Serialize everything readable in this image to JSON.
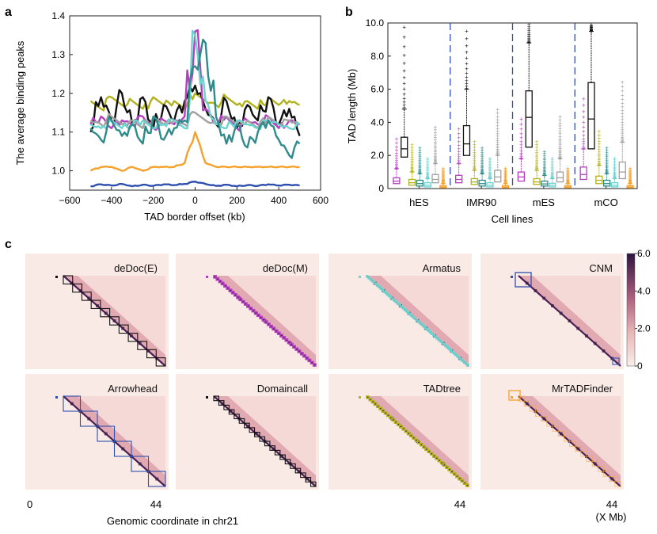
{
  "panels": {
    "a_letter": "a",
    "b_letter": "b",
    "c_letter": "c"
  },
  "colors": {
    "black": "#111111",
    "magenta": "#b53fc0",
    "olive": "#b2b21f",
    "teal": "#2e8b8b",
    "lightcyan": "#6cd3cf",
    "gray": "#a0a0a0",
    "orange": "#f5a12b",
    "blue": "#2f4fae",
    "heat_low": "#f9e6e3",
    "heat_high": "#3a1a46"
  },
  "chart_data": [
    {
      "panel": "a",
      "type": "line",
      "title": "",
      "xlabel": "TAD border offset (kb)",
      "ylabel": "The average binding peaks",
      "xlim": [
        -600,
        600
      ],
      "ylim": [
        0.95,
        1.4
      ],
      "xticks": [
        "−600",
        "−400",
        "−200",
        "0",
        "200",
        "400",
        "600"
      ],
      "yticks": [
        "1.0",
        "1.1",
        "1.2",
        "1.3",
        "1.4"
      ],
      "x": [
        -500,
        -450,
        -400,
        -350,
        -300,
        -250,
        -200,
        -150,
        -100,
        -50,
        0,
        50,
        100,
        150,
        200,
        250,
        300,
        350,
        400,
        450,
        500
      ],
      "series": [
        {
          "name": "olive",
          "color": "#b2b21f",
          "values": [
            1.18,
            1.16,
            1.19,
            1.17,
            1.18,
            1.16,
            1.19,
            1.17,
            1.18,
            1.16,
            1.2,
            1.18,
            1.17,
            1.19,
            1.17,
            1.18,
            1.16,
            1.19,
            1.17,
            1.18,
            1.17
          ]
        },
        {
          "name": "black",
          "color": "#111111",
          "values": [
            1.1,
            1.19,
            1.13,
            1.2,
            1.12,
            1.19,
            1.11,
            1.17,
            1.13,
            1.18,
            1.22,
            1.16,
            1.12,
            1.18,
            1.11,
            1.17,
            1.13,
            1.19,
            1.12,
            1.16,
            1.09
          ]
        },
        {
          "name": "magenta",
          "color": "#b53fc0",
          "values": [
            1.12,
            1.14,
            1.11,
            1.13,
            1.12,
            1.14,
            1.11,
            1.13,
            1.12,
            1.14,
            1.36,
            1.16,
            1.12,
            1.14,
            1.11,
            1.13,
            1.12,
            1.14,
            1.11,
            1.13,
            1.12
          ]
        },
        {
          "name": "gray",
          "color": "#a0a0a0",
          "values": [
            1.13,
            1.12,
            1.14,
            1.12,
            1.13,
            1.11,
            1.14,
            1.12,
            1.13,
            1.12,
            1.15,
            1.13,
            1.12,
            1.14,
            1.12,
            1.13,
            1.11,
            1.14,
            1.12,
            1.13,
            1.12
          ]
        },
        {
          "name": "lightcyan",
          "color": "#6cd3cf",
          "values": [
            1.12,
            1.11,
            1.13,
            1.11,
            1.12,
            1.13,
            1.11,
            1.12,
            1.13,
            1.11,
            1.35,
            1.18,
            1.12,
            1.11,
            1.13,
            1.12,
            1.11,
            1.13,
            1.12,
            1.11,
            1.12
          ]
        },
        {
          "name": "teal",
          "color": "#2e8b8b",
          "values": [
            1.11,
            1.08,
            1.13,
            1.09,
            1.12,
            1.07,
            1.14,
            1.08,
            1.11,
            1.13,
            1.27,
            1.33,
            1.14,
            1.07,
            1.12,
            1.06,
            1.1,
            1.13,
            1.08,
            1.04,
            1.07
          ]
        },
        {
          "name": "orange",
          "color": "#f5a12b",
          "values": [
            1.0,
            1.01,
            1.01,
            1.0,
            1.01,
            1.0,
            1.01,
            1.01,
            1.01,
            1.02,
            1.1,
            1.02,
            1.01,
            1.01,
            1.01,
            1.01,
            1.01,
            1.01,
            1.01,
            1.01,
            1.01
          ]
        },
        {
          "name": "blue",
          "color": "#2f4fae",
          "values": [
            0.96,
            0.965,
            0.962,
            0.966,
            0.96,
            0.964,
            0.961,
            0.965,
            0.963,
            0.966,
            0.972,
            0.966,
            0.961,
            0.964,
            0.96,
            0.963,
            0.961,
            0.965,
            0.962,
            0.964,
            0.962
          ]
        }
      ]
    },
    {
      "panel": "b",
      "type": "box",
      "title": "",
      "xlabel": "Cell lines",
      "ylabel": "TAD length (Mb)",
      "ylim": [
        0,
        10
      ],
      "yticks": [
        "0",
        "2.0",
        "4.0",
        "6.0",
        "8.0",
        "10.0"
      ],
      "categories": [
        "hES",
        "IMR90",
        "mES",
        "mCO"
      ],
      "methods": [
        "magenta",
        "black",
        "olive",
        "teal",
        "lightcyan",
        "gray",
        "orange"
      ],
      "boxes": [
        [
          {
            "q1": 0.3,
            "med": 0.45,
            "q3": 0.65,
            "whi": 1.2,
            "color": "#b53fc0"
          },
          {
            "q1": 1.9,
            "med": 2.4,
            "q3": 3.1,
            "whi": 4.8,
            "color": "#111111"
          },
          {
            "q1": 0.2,
            "med": 0.35,
            "q3": 0.55,
            "whi": 1.0,
            "color": "#b2b21f"
          },
          {
            "q1": 0.15,
            "med": 0.3,
            "q3": 0.5,
            "whi": 0.9,
            "color": "#2e8b8b"
          },
          {
            "q1": 0.1,
            "med": 0.2,
            "q3": 0.35,
            "whi": 0.6,
            "color": "#6cd3cf"
          },
          {
            "q1": 0.35,
            "med": 0.55,
            "q3": 0.85,
            "whi": 1.5,
            "color": "#a0a0a0"
          },
          {
            "q1": 0.05,
            "med": 0.1,
            "q3": 0.18,
            "whi": 0.3,
            "color": "#f5a12b"
          }
        ],
        [
          {
            "q1": 0.35,
            "med": 0.55,
            "q3": 0.8,
            "whi": 1.5,
            "color": "#b53fc0"
          },
          {
            "q1": 2.0,
            "med": 2.7,
            "q3": 3.8,
            "whi": 6.0,
            "color": "#111111"
          },
          {
            "q1": 0.25,
            "med": 0.4,
            "q3": 0.6,
            "whi": 1.1,
            "color": "#b2b21f"
          },
          {
            "q1": 0.15,
            "med": 0.3,
            "q3": 0.5,
            "whi": 0.9,
            "color": "#2e8b8b"
          },
          {
            "q1": 0.1,
            "med": 0.2,
            "q3": 0.35,
            "whi": 0.6,
            "color": "#6cd3cf"
          },
          {
            "q1": 0.4,
            "med": 0.7,
            "q3": 1.1,
            "whi": 2.0,
            "color": "#a0a0a0"
          },
          {
            "q1": 0.05,
            "med": 0.1,
            "q3": 0.18,
            "whi": 0.3,
            "color": "#f5a12b"
          }
        ],
        [
          {
            "q1": 0.45,
            "med": 0.7,
            "q3": 1.0,
            "whi": 1.8,
            "color": "#b53fc0"
          },
          {
            "q1": 2.5,
            "med": 4.3,
            "q3": 5.9,
            "whi": 8.8,
            "color": "#111111"
          },
          {
            "q1": 0.25,
            "med": 0.4,
            "q3": 0.6,
            "whi": 1.1,
            "color": "#b2b21f"
          },
          {
            "q1": 0.15,
            "med": 0.28,
            "q3": 0.45,
            "whi": 0.8,
            "color": "#2e8b8b"
          },
          {
            "q1": 0.1,
            "med": 0.2,
            "q3": 0.32,
            "whi": 0.6,
            "color": "#6cd3cf"
          },
          {
            "q1": 0.4,
            "med": 0.65,
            "q3": 1.0,
            "whi": 1.8,
            "color": "#a0a0a0"
          },
          {
            "q1": 0.05,
            "med": 0.1,
            "q3": 0.18,
            "whi": 0.3,
            "color": "#f5a12b"
          }
        ],
        [
          {
            "q1": 0.55,
            "med": 0.85,
            "q3": 1.3,
            "whi": 2.4,
            "color": "#b53fc0"
          },
          {
            "q1": 2.4,
            "med": 4.2,
            "q3": 6.4,
            "whi": 9.5,
            "color": "#111111"
          },
          {
            "q1": 0.3,
            "med": 0.5,
            "q3": 0.75,
            "whi": 1.4,
            "color": "#b2b21f"
          },
          {
            "q1": 0.15,
            "med": 0.3,
            "q3": 0.5,
            "whi": 0.9,
            "color": "#2e8b8b"
          },
          {
            "q1": 0.1,
            "med": 0.2,
            "q3": 0.35,
            "whi": 0.6,
            "color": "#6cd3cf"
          },
          {
            "q1": 0.6,
            "med": 1.0,
            "q3": 1.6,
            "whi": 2.8,
            "color": "#a0a0a0"
          },
          {
            "q1": 0.05,
            "med": 0.1,
            "q3": 0.18,
            "whi": 0.3,
            "color": "#f5a12b"
          }
        ]
      ]
    },
    {
      "panel": "c",
      "type": "heatmap",
      "title": "",
      "xlabel": "Genomic coordinate in chr21",
      "unit_label": "(X Mb)",
      "axis_start": "0",
      "axis_end": "44",
      "colorbar_ticks": [
        "6.0",
        "4.0",
        "2.0",
        "0"
      ],
      "colorbar_range": [
        0,
        6
      ],
      "methods": [
        {
          "name": "deDoc(E)",
          "color": "#111111",
          "domain_count": 11
        },
        {
          "name": "deDoc(M)",
          "color": "#b53fc0",
          "domain_count": 40
        },
        {
          "name": "Armatus",
          "color": "#6cd3cf",
          "domain_count": 60
        },
        {
          "name": "CNM",
          "color": "#2f4fae",
          "domain_count": 3
        },
        {
          "name": "Arrowhead",
          "color": "#2f4fae",
          "domain_count": 6
        },
        {
          "name": "Domaincall",
          "color": "#111111",
          "domain_count": 20
        },
        {
          "name": "TADtree",
          "color": "#b2b21f",
          "domain_count": 40
        },
        {
          "name": "MrTADFinder",
          "color": "#f5a12b",
          "domain_count": 18
        }
      ]
    }
  ]
}
